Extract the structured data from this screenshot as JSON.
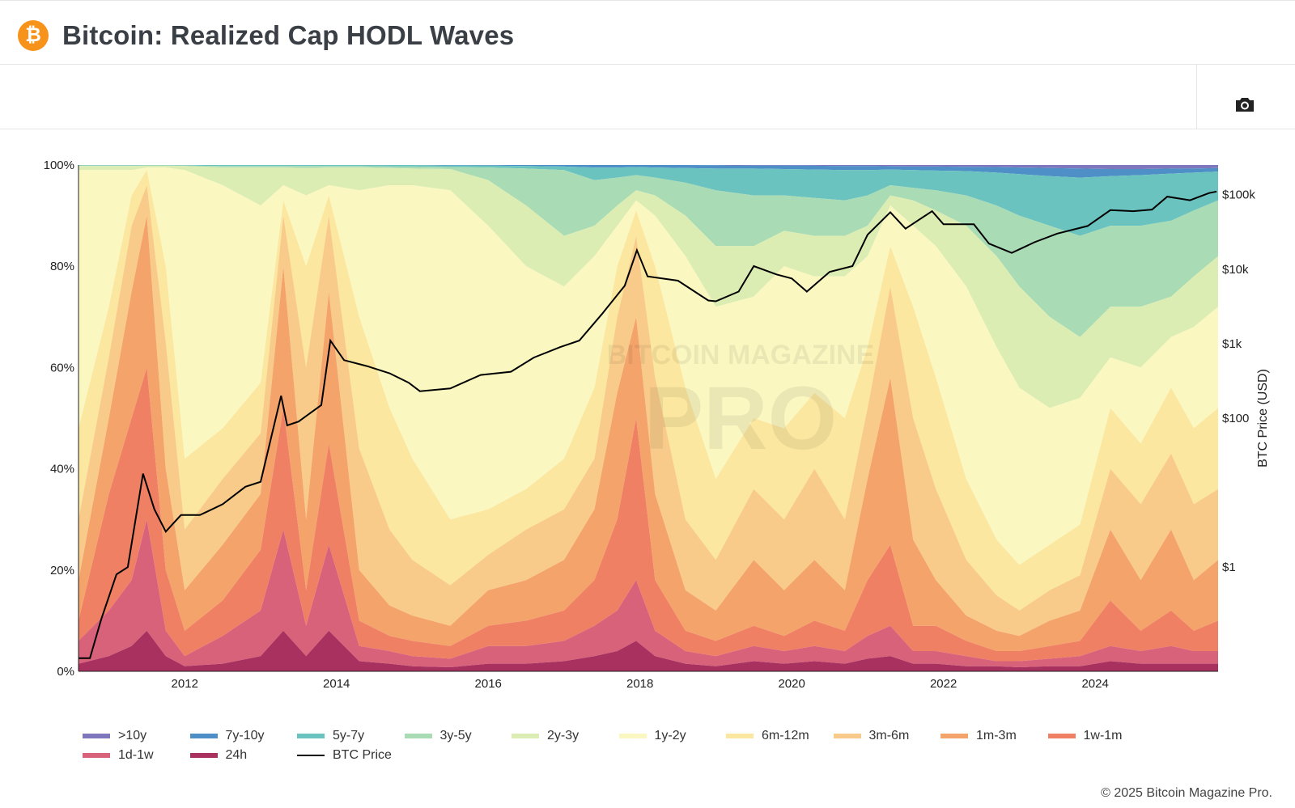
{
  "header": {
    "title": "Bitcoin: Realized Cap HODL Waves",
    "logo_glyph": "₿",
    "logo_color": "#f7931a"
  },
  "toolbar": {
    "camera_icon": "camera-icon"
  },
  "watermark": {
    "line1": "BITCOIN MAGAZINE",
    "line2": "PRO"
  },
  "footer": {
    "copyright": "© 2025 Bitcoin Magazine Pro."
  },
  "chart_data": {
    "type": "area",
    "stacking": "percent",
    "title": "Bitcoin: Realized Cap HODL Waves",
    "y_axis_left": {
      "ticks": [
        "0%",
        "20%",
        "40%",
        "60%",
        "80%",
        "100%"
      ],
      "range": [
        0,
        100
      ]
    },
    "y_axis_right": {
      "label": "BTC Price (USD)",
      "scale": "log",
      "ticks": [
        "$1",
        "$100",
        "$1k",
        "$10k",
        "$100k"
      ],
      "tick_values": [
        1,
        100,
        1000,
        10000,
        100000
      ],
      "range": [
        0.04,
        250000
      ]
    },
    "x_axis": {
      "ticks": [
        "2012",
        "2014",
        "2016",
        "2018",
        "2020",
        "2022",
        "2024"
      ],
      "range": [
        2010.6,
        2025.62
      ]
    },
    "x": [
      2010.6,
      2011.0,
      2011.3,
      2011.5,
      2011.75,
      2012.0,
      2012.5,
      2013.0,
      2013.3,
      2013.6,
      2013.9,
      2014.3,
      2014.7,
      2015.0,
      2015.5,
      2016.0,
      2016.5,
      2017.0,
      2017.4,
      2017.7,
      2017.95,
      2018.2,
      2018.6,
      2019.0,
      2019.5,
      2019.9,
      2020.3,
      2020.7,
      2021.0,
      2021.3,
      2021.6,
      2021.9,
      2022.3,
      2022.7,
      2023.0,
      2023.4,
      2023.8,
      2024.2,
      2024.6,
      2025.0,
      2025.3,
      2025.62
    ],
    "series": [
      {
        "name": "24h",
        "color": "#a8315f",
        "values": [
          1.5,
          3,
          5,
          8,
          3,
          1,
          1.5,
          3,
          8,
          3,
          8,
          2,
          1.5,
          1,
          0.8,
          1.5,
          1.5,
          2,
          3,
          4,
          6,
          3,
          1.5,
          1,
          2,
          1.5,
          2,
          1.5,
          2.5,
          3,
          1.5,
          1.5,
          1,
          1,
          0.8,
          1,
          1,
          2,
          1.5,
          1.5,
          1.5,
          1.5
        ]
      },
      {
        "name": "1d-1w",
        "color": "#d9627b",
        "values": [
          6,
          12,
          18,
          30,
          8,
          3,
          7,
          12,
          28,
          9,
          25,
          5,
          4,
          3,
          2.5,
          5,
          5,
          6,
          9,
          12,
          18,
          8,
          4,
          3,
          5,
          4,
          5,
          4,
          7,
          9,
          4,
          4,
          3,
          2,
          2,
          2.5,
          3,
          5,
          4,
          5,
          4,
          4
        ]
      },
      {
        "name": "1w-1m",
        "color": "#f08064",
        "values": [
          10,
          35,
          50,
          60,
          20,
          8,
          14,
          24,
          52,
          16,
          45,
          10,
          7,
          6,
          5,
          9,
          10,
          12,
          18,
          30,
          50,
          18,
          8,
          6,
          9,
          7,
          10,
          8,
          18,
          25,
          9,
          9,
          6,
          4,
          4,
          5,
          6,
          14,
          8,
          12,
          8,
          10
        ]
      },
      {
        "name": "1m-3m",
        "color": "#f4a46b",
        "values": [
          18,
          50,
          75,
          90,
          40,
          16,
          25,
          35,
          80,
          30,
          75,
          20,
          13,
          11,
          9,
          16,
          18,
          22,
          32,
          55,
          70,
          35,
          16,
          12,
          22,
          16,
          22,
          16,
          38,
          58,
          26,
          18,
          11,
          8,
          7,
          10,
          12,
          28,
          18,
          28,
          18,
          22
        ]
      },
      {
        "name": "3m-6m",
        "color": "#f9cb8a",
        "values": [
          30,
          62,
          88,
          96,
          65,
          28,
          38,
          47,
          90,
          60,
          90,
          44,
          28,
          22,
          17,
          23,
          28,
          32,
          42,
          70,
          86,
          58,
          30,
          22,
          36,
          30,
          40,
          30,
          52,
          76,
          50,
          36,
          22,
          15,
          12,
          16,
          19,
          40,
          33,
          43,
          33,
          36
        ]
      },
      {
        "name": "6m-12m",
        "color": "#fbe79f",
        "values": [
          48,
          72,
          94,
          99,
          80,
          42,
          48,
          57,
          93,
          80,
          94,
          70,
          52,
          42,
          30,
          32,
          36,
          42,
          56,
          80,
          91,
          80,
          56,
          38,
          50,
          48,
          55,
          50,
          64,
          84,
          72,
          58,
          38,
          26,
          21,
          25,
          29,
          52,
          45,
          56,
          48,
          52
        ]
      },
      {
        "name": "1y-2y",
        "color": "#fbf7c1",
        "values": [
          99,
          99,
          99,
          99.5,
          99.5,
          99,
          96,
          92,
          96,
          94,
          96,
          95,
          96,
          96,
          95,
          88,
          80,
          76,
          82,
          88,
          93,
          90,
          82,
          72,
          74,
          80,
          78,
          78,
          82,
          92,
          88,
          84,
          76,
          64,
          56,
          52,
          54,
          62,
          60,
          66,
          68,
          72
        ]
      },
      {
        "name": "2y-3y",
        "color": "#dcedb3",
        "values": [
          99.8,
          99.8,
          99.8,
          99.9,
          99.9,
          99.8,
          99.5,
          99.5,
          99.5,
          99.4,
          99.5,
          99.5,
          99.4,
          99.3,
          99.2,
          97,
          92,
          86,
          88,
          92,
          95,
          94,
          90,
          84,
          84,
          87,
          86,
          86,
          88,
          94,
          93,
          91,
          88,
          82,
          76,
          70,
          66,
          72,
          72,
          74,
          78,
          82
        ]
      },
      {
        "name": "3y-5y",
        "color": "#a9dbb4",
        "values": [
          99.9,
          99.9,
          99.9,
          99.9,
          99.9,
          99.9,
          99.8,
          99.8,
          99.8,
          99.8,
          99.8,
          99.8,
          99.7,
          99.7,
          99.6,
          99.5,
          99.3,
          99,
          97,
          97.5,
          98,
          97.5,
          96.5,
          95,
          94,
          94,
          93.5,
          93,
          94,
          96,
          95.5,
          95,
          94,
          92,
          90,
          88,
          86,
          88,
          88,
          89,
          91,
          93
        ]
      },
      {
        "name": "5y-7y",
        "color": "#6bc3c0",
        "values": [
          100,
          100,
          100,
          100,
          100,
          100,
          100,
          100,
          100,
          100,
          100,
          100,
          100,
          100,
          99.9,
          99.9,
          99.8,
          99.7,
          99.5,
          99.5,
          99.6,
          99.5,
          99.4,
          99.3,
          99.3,
          99.2,
          99.1,
          99,
          99,
          99.1,
          99,
          98.9,
          98.8,
          98.5,
          98.2,
          97.8,
          97.5,
          97.8,
          98,
          98.3,
          98.5,
          98.7
        ]
      },
      {
        "name": "7y-10y",
        "color": "#4f8fc7",
        "values": [
          100,
          100,
          100,
          100,
          100,
          100,
          100,
          100,
          100,
          100,
          100,
          100,
          100,
          100,
          100,
          100,
          100,
          100,
          100,
          100,
          100,
          100,
          100,
          99.95,
          99.9,
          99.9,
          99.85,
          99.8,
          99.8,
          99.75,
          99.7,
          99.7,
          99.65,
          99.6,
          99.5,
          99.4,
          99.3,
          99.2,
          99.2,
          99.3,
          99.3,
          99.4
        ]
      },
      {
        "name": ">10y",
        "color": "#7e77bd",
        "values": [
          100,
          100,
          100,
          100,
          100,
          100,
          100,
          100,
          100,
          100,
          100,
          100,
          100,
          100,
          100,
          100,
          100,
          100,
          100,
          100,
          100,
          100,
          100,
          100,
          100,
          100,
          100,
          100,
          100,
          100,
          100,
          100,
          100,
          100,
          100,
          100,
          100,
          100,
          100,
          100,
          100,
          100
        ]
      }
    ],
    "price_series": {
      "name": "BTC Price",
      "color": "#000000",
      "x": [
        2010.6,
        2010.75,
        2010.9,
        2011.1,
        2011.25,
        2011.45,
        2011.6,
        2011.75,
        2011.95,
        2012.2,
        2012.5,
        2012.8,
        2013.0,
        2013.27,
        2013.35,
        2013.5,
        2013.8,
        2013.92,
        2014.1,
        2014.4,
        2014.7,
        2014.95,
        2015.1,
        2015.5,
        2015.9,
        2016.3,
        2016.6,
        2016.95,
        2017.2,
        2017.5,
        2017.8,
        2017.96,
        2018.1,
        2018.5,
        2018.9,
        2019.0,
        2019.3,
        2019.5,
        2019.8,
        2020.0,
        2020.2,
        2020.5,
        2020.8,
        2021.0,
        2021.3,
        2021.5,
        2021.85,
        2022.0,
        2022.4,
        2022.6,
        2022.9,
        2023.2,
        2023.5,
        2023.9,
        2024.2,
        2024.5,
        2024.75,
        2024.95,
        2025.25,
        2025.5,
        2025.6
      ],
      "values": [
        0.06,
        0.06,
        0.2,
        0.8,
        1,
        18,
        6,
        3,
        5,
        5,
        7,
        12,
        14,
        200,
        80,
        90,
        150,
        1100,
        600,
        500,
        400,
        300,
        230,
        250,
        380,
        420,
        650,
        900,
        1100,
        2500,
        6000,
        18000,
        8000,
        7000,
        3800,
        3700,
        5000,
        11000,
        8500,
        7500,
        5000,
        9200,
        11000,
        29000,
        58000,
        35000,
        60000,
        40000,
        40000,
        22000,
        16500,
        23000,
        30000,
        38000,
        62000,
        60000,
        63000,
        94000,
        84000,
        105000,
        110000
      ]
    },
    "legend": [
      ">10y",
      "7y-10y",
      "5y-7y",
      "3y-5y",
      "2y-3y",
      "1y-2y",
      "6m-12m",
      "3m-6m",
      "1m-3m",
      "1w-1m",
      "1d-1w",
      "24h",
      "BTC Price"
    ],
    "legend_position": "bottom"
  }
}
